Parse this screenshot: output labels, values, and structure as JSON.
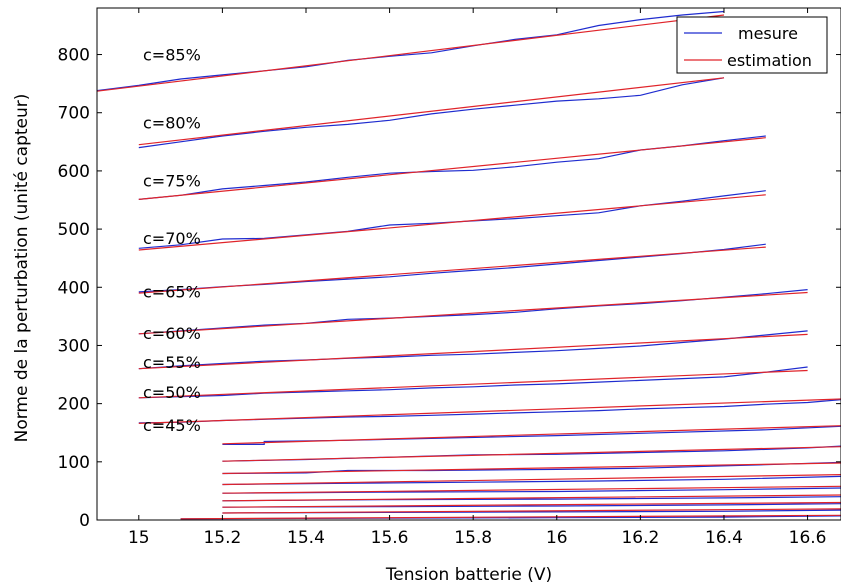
{
  "chart_data": {
    "type": "line",
    "xlabel": "Tension batterie (V)",
    "ylabel": "Norme de la perturbation (unité capteur)",
    "xlim": [
      14.9,
      16.68
    ],
    "ylim": [
      0,
      880
    ],
    "x_ticks": [
      {
        "value": 15,
        "label": "15"
      },
      {
        "value": 15.2,
        "label": "15.2"
      },
      {
        "value": 15.4,
        "label": "15.4"
      },
      {
        "value": 15.6,
        "label": "15.6"
      },
      {
        "value": 15.8,
        "label": "15.8"
      },
      {
        "value": 16,
        "label": "16"
      },
      {
        "value": 16.2,
        "label": "16.2"
      },
      {
        "value": 16.4,
        "label": "16.4"
      },
      {
        "value": 16.6,
        "label": "16.6"
      }
    ],
    "y_ticks": [
      {
        "value": 0,
        "label": "0"
      },
      {
        "value": 100,
        "label": "100"
      },
      {
        "value": 200,
        "label": "200"
      },
      {
        "value": 300,
        "label": "300"
      },
      {
        "value": 400,
        "label": "400"
      },
      {
        "value": 500,
        "label": "500"
      },
      {
        "value": 600,
        "label": "600"
      },
      {
        "value": 700,
        "label": "700"
      },
      {
        "value": 800,
        "label": "800"
      }
    ],
    "grid": false,
    "legend_position": "top-right",
    "legend": [
      {
        "label": "mesure",
        "color": "#1f2ccf"
      },
      {
        "label": "estimation",
        "color": "#e0242a"
      }
    ],
    "annotations": [
      {
        "text": "c=85%",
        "x": 15.01,
        "y": 790
      },
      {
        "text": "c=80%",
        "x": 15.01,
        "y": 673
      },
      {
        "text": "c=75%",
        "x": 15.01,
        "y": 573
      },
      {
        "text": "c=70%",
        "x": 15.01,
        "y": 474
      },
      {
        "text": "c=65%",
        "x": 15.01,
        "y": 382
      },
      {
        "text": "c=60%",
        "x": 15.01,
        "y": 311
      },
      {
        "text": "c=55%",
        "x": 15.01,
        "y": 261
      },
      {
        "text": "c=50%",
        "x": 15.01,
        "y": 210
      },
      {
        "text": "c=45%",
        "x": 15.01,
        "y": 153
      }
    ],
    "curves": [
      {
        "label": "c=85%",
        "mesure": {
          "x": [
            14.9,
            15.0,
            15.1,
            15.2,
            15.3,
            15.4,
            15.5,
            15.6,
            15.7,
            15.8,
            15.9,
            16.0,
            16.1,
            16.2,
            16.3,
            16.4
          ],
          "y": [
            738,
            747,
            758,
            765,
            772,
            779,
            790,
            797,
            803,
            815,
            826,
            834,
            850,
            860,
            868,
            874
          ]
        },
        "estimation": {
          "x": [
            14.9,
            16.4
          ],
          "y": [
            737,
            868
          ]
        }
      },
      {
        "label": "c=80%",
        "mesure": {
          "x": [
            15.0,
            15.1,
            15.2,
            15.3,
            15.4,
            15.5,
            15.6,
            15.7,
            15.8,
            15.9,
            16.0,
            16.1,
            16.2,
            16.3,
            16.4
          ],
          "y": [
            640,
            650,
            660,
            668,
            675,
            680,
            687,
            698,
            706,
            713,
            720,
            724,
            730,
            748,
            760
          ]
        },
        "estimation": {
          "x": [
            15.0,
            16.4
          ],
          "y": [
            645,
            760
          ]
        }
      },
      {
        "label": "c=75%",
        "mesure": {
          "x": [
            15.0,
            15.1,
            15.2,
            15.3,
            15.4,
            15.5,
            15.6,
            15.7,
            15.8,
            15.9,
            16.0,
            16.1,
            16.2,
            16.3,
            16.4,
            16.5
          ],
          "y": [
            551,
            558,
            569,
            575,
            581,
            589,
            596,
            599,
            601,
            607,
            615,
            621,
            636,
            643,
            652,
            660
          ]
        },
        "estimation": {
          "x": [
            15.0,
            16.5
          ],
          "y": [
            551,
            657
          ]
        }
      },
      {
        "label": "c=70%",
        "mesure": {
          "x": [
            15.0,
            15.1,
            15.2,
            15.3,
            15.4,
            15.5,
            15.6,
            15.7,
            15.8,
            15.9,
            16.0,
            16.1,
            16.2,
            16.3,
            16.4,
            16.5
          ],
          "y": [
            467,
            473,
            483,
            484,
            490,
            496,
            507,
            510,
            514,
            518,
            523,
            528,
            540,
            548,
            557,
            566
          ]
        },
        "estimation": {
          "x": [
            15.0,
            16.5
          ],
          "y": [
            464,
            559
          ]
        }
      },
      {
        "label": "c=65%",
        "mesure": {
          "x": [
            15.0,
            15.1,
            15.2,
            15.3,
            15.4,
            15.5,
            15.6,
            15.7,
            15.8,
            15.9,
            16.0,
            16.1,
            16.2,
            16.3,
            16.4,
            16.5
          ],
          "y": [
            392,
            396,
            401,
            405,
            410,
            414,
            418,
            424,
            429,
            434,
            440,
            446,
            452,
            458,
            465,
            474
          ]
        },
        "estimation": {
          "x": [
            15.0,
            16.5
          ],
          "y": [
            390,
            469
          ]
        }
      },
      {
        "label": "c=60%",
        "mesure": {
          "x": [
            15.0,
            15.1,
            15.2,
            15.3,
            15.4,
            15.5,
            15.6,
            15.7,
            15.8,
            15.9,
            16.0,
            16.1,
            16.2,
            16.3,
            16.4,
            16.5,
            16.6
          ],
          "y": [
            320,
            325,
            330,
            335,
            338,
            345,
            347,
            350,
            353,
            357,
            363,
            368,
            372,
            377,
            383,
            389,
            396
          ]
        },
        "estimation": {
          "x": [
            15.0,
            16.6
          ],
          "y": [
            320,
            391
          ]
        }
      },
      {
        "label": "c=55%",
        "mesure": {
          "x": [
            15.0,
            15.1,
            15.2,
            15.3,
            15.4,
            15.5,
            15.6,
            15.7,
            15.8,
            15.9,
            16.0,
            16.1,
            16.2,
            16.3,
            16.4,
            16.5,
            16.6
          ],
          "y": [
            260,
            265,
            269,
            273,
            275,
            278,
            280,
            283,
            285,
            288,
            291,
            295,
            299,
            305,
            311,
            318,
            325
          ]
        },
        "estimation": {
          "x": [
            15.0,
            16.6
          ],
          "y": [
            260,
            319
          ]
        }
      },
      {
        "label": "c=50%",
        "mesure": {
          "x": [
            15.0,
            15.1,
            15.2,
            15.3,
            15.4,
            15.5,
            15.6,
            15.7,
            15.8,
            15.9,
            16.0,
            16.1,
            16.2,
            16.3,
            16.4,
            16.5,
            16.6
          ],
          "y": [
            210,
            212,
            214,
            218,
            220,
            222,
            224,
            227,
            229,
            232,
            234,
            237,
            240,
            243,
            246,
            254,
            263
          ]
        },
        "estimation": {
          "x": [
            15.0,
            16.6
          ],
          "y": [
            210,
            257
          ]
        }
      },
      {
        "label": "c=45%",
        "mesure": {
          "x": [
            15.0,
            15.1,
            15.2,
            15.3,
            15.4,
            15.5,
            15.6,
            15.7,
            15.8,
            15.9,
            16.0,
            16.1,
            16.2,
            16.3,
            16.4,
            16.5,
            16.6,
            16.68
          ],
          "y": [
            167,
            168,
            171,
            173,
            175,
            177,
            178,
            180,
            182,
            184,
            186,
            188,
            191,
            193,
            195,
            199,
            202,
            207
          ]
        },
        "estimation": {
          "x": [
            15.0,
            16.68
          ],
          "y": [
            166,
            208
          ]
        }
      },
      {
        "label": "",
        "mesure": {
          "x": [
            15.2,
            15.3,
            15.3,
            15.5,
            16.0,
            16.5,
            16.68
          ],
          "y": [
            130,
            130,
            135,
            137,
            145,
            155,
            161
          ]
        },
        "estimation": {
          "x": [
            15.2,
            16.68
          ],
          "y": [
            131,
            162
          ]
        }
      },
      {
        "label": "",
        "mesure": {
          "x": [
            15.2,
            15.4,
            15.6,
            15.8,
            16.0,
            16.2,
            16.4,
            16.6,
            16.68
          ],
          "y": [
            101,
            104,
            108,
            112,
            113,
            116,
            119,
            124,
            127
          ]
        },
        "estimation": {
          "x": [
            15.2,
            16.68
          ],
          "y": [
            101,
            126
          ]
        }
      },
      {
        "label": "",
        "mesure": {
          "x": [
            15.2,
            15.4,
            15.5,
            15.7,
            16.0,
            16.2,
            16.5,
            16.68
          ],
          "y": [
            80,
            81,
            85,
            85,
            87,
            89,
            95,
            99
          ]
        },
        "estimation": {
          "x": [
            15.2,
            16.68
          ],
          "y": [
            80,
            98
          ]
        }
      },
      {
        "label": "",
        "mesure": {
          "x": [
            15.2,
            15.5,
            15.8,
            16.1,
            16.4,
            16.68
          ],
          "y": [
            61,
            63,
            65,
            67,
            70,
            75
          ]
        },
        "estimation": {
          "x": [
            15.2,
            16.68
          ],
          "y": [
            61,
            78
          ]
        }
      },
      {
        "label": "",
        "mesure": {
          "x": [
            15.2,
            15.6,
            16.0,
            16.4,
            16.68
          ],
          "y": [
            46,
            48,
            49,
            52,
            55
          ]
        },
        "estimation": {
          "x": [
            15.2,
            16.68
          ],
          "y": [
            46,
            58
          ]
        }
      },
      {
        "label": "",
        "mesure": {
          "x": [
            15.2,
            15.6,
            16.0,
            16.4,
            16.68
          ],
          "y": [
            33,
            35,
            36,
            38,
            40
          ]
        },
        "estimation": {
          "x": [
            15.2,
            16.68
          ],
          "y": [
            33,
            43
          ]
        }
      },
      {
        "label": "",
        "mesure": {
          "x": [
            15.2,
            15.6,
            16.0,
            16.4,
            16.68
          ],
          "y": [
            22,
            23,
            24,
            26,
            28
          ]
        },
        "estimation": {
          "x": [
            15.2,
            16.68
          ],
          "y": [
            22,
            30
          ]
        }
      },
      {
        "label": "",
        "mesure": {
          "x": [
            15.2,
            15.6,
            16.0,
            16.4,
            16.68
          ],
          "y": [
            12,
            13,
            14,
            15,
            17
          ]
        },
        "estimation": {
          "x": [
            15.2,
            16.68
          ],
          "y": [
            12,
            19
          ]
        }
      },
      {
        "label": "",
        "mesure": {
          "x": [
            15.1,
            15.5,
            16.0,
            16.4,
            16.68
          ],
          "y": [
            2,
            3,
            4,
            5,
            7
          ]
        },
        "estimation": {
          "x": [
            15.1,
            16.68
          ],
          "y": [
            2,
            8
          ]
        }
      }
    ]
  }
}
